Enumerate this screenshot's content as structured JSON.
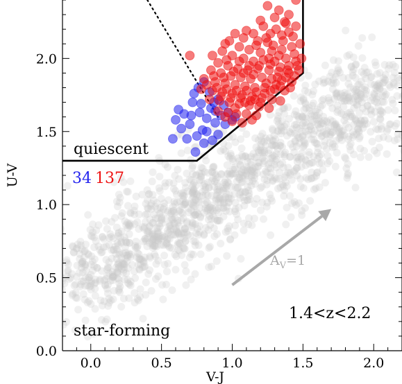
{
  "chart_data": {
    "type": "scatter",
    "xlabel": "V-J",
    "ylabel": "U-V",
    "xlim": [
      -0.2,
      2.2
    ],
    "ylim": [
      0.0,
      2.4
    ],
    "x_ticks": [
      0.0,
      0.5,
      1.0,
      1.5,
      2.0
    ],
    "x_tick_labels": [
      "0.0",
      "0.5",
      "1.0",
      "1.5",
      "2.0"
    ],
    "y_ticks": [
      0.0,
      0.5,
      1.0,
      1.5,
      2.0
    ],
    "y_tick_labels": [
      "0.0",
      "0.5",
      "1.0",
      "1.5",
      "2.0"
    ],
    "grid": false,
    "legend": "none",
    "annotations": {
      "region_quiescent": "quiescent",
      "region_star_forming": "star-forming",
      "redshift": "1.4<z<2.2",
      "count_blue": "34",
      "count_red": "137",
      "vector_label_main": "A",
      "vector_label_sub": "V",
      "vector_label_rest": "=1"
    },
    "colors": {
      "background_sample": "#c8c8c8",
      "blue_sample": "#2222ee",
      "red_sample": "#ee1111",
      "vector": "#a8a8a8",
      "boundary": "#000000"
    },
    "quiescent_boundary": [
      [
        -0.2,
        1.3
      ],
      [
        0.75,
        1.3
      ],
      [
        1.5,
        1.9
      ],
      [
        1.5,
        2.4
      ]
    ],
    "dotted_line": [
      [
        0.4,
        2.4
      ],
      [
        0.9,
        1.6
      ]
    ],
    "dust_vector": {
      "from": [
        1.0,
        0.45
      ],
      "to": [
        1.7,
        0.97
      ]
    },
    "series": [
      {
        "color": "#2222ee",
        "count": 34,
        "points": [
          [
            0.85,
            1.66
          ],
          [
            0.88,
            1.64
          ],
          [
            0.8,
            1.84
          ],
          [
            0.76,
            1.8
          ],
          [
            0.9,
            1.72
          ],
          [
            0.72,
            1.7
          ],
          [
            0.66,
            1.62
          ],
          [
            0.6,
            1.58
          ],
          [
            0.64,
            1.52
          ],
          [
            0.7,
            1.55
          ],
          [
            0.75,
            1.47
          ],
          [
            0.79,
            1.51
          ],
          [
            0.82,
            1.59
          ],
          [
            0.86,
            1.44
          ],
          [
            0.8,
            1.42
          ],
          [
            0.74,
            1.36
          ],
          [
            0.95,
            1.55
          ],
          [
            0.92,
            1.61
          ],
          [
            0.97,
            1.63
          ],
          [
            1.0,
            1.58
          ],
          [
            0.78,
            1.69
          ],
          [
            0.84,
            1.77
          ],
          [
            0.88,
            1.56
          ],
          [
            0.68,
            1.45
          ],
          [
            0.58,
            1.45
          ],
          [
            0.62,
            1.65
          ],
          [
            0.82,
            1.5
          ],
          [
            0.9,
            1.48
          ],
          [
            0.94,
            1.68
          ],
          [
            0.71,
            1.61
          ],
          [
            0.77,
            1.63
          ],
          [
            0.87,
            1.7
          ],
          [
            1.02,
            1.6
          ],
          [
            0.73,
            1.76
          ]
        ]
      },
      {
        "color": "#ee1111",
        "count": 137,
        "points": [
          [
            1.45,
            2.4
          ],
          [
            1.25,
            2.36
          ],
          [
            1.33,
            2.33
          ],
          [
            1.4,
            2.3
          ],
          [
            1.37,
            2.25
          ],
          [
            1.3,
            2.28
          ],
          [
            1.45,
            2.22
          ],
          [
            1.4,
            2.18
          ],
          [
            1.22,
            2.22
          ],
          [
            1.27,
            2.17
          ],
          [
            1.35,
            2.16
          ],
          [
            1.15,
            2.17
          ],
          [
            1.08,
            2.14
          ],
          [
            1.18,
            2.12
          ],
          [
            1.25,
            2.11
          ],
          [
            0.98,
            2.12
          ],
          [
            1.05,
            2.08
          ],
          [
            1.12,
            2.06
          ],
          [
            1.2,
            2.04
          ],
          [
            1.28,
            2.05
          ],
          [
            1.35,
            2.06
          ],
          [
            1.42,
            2.08
          ],
          [
            1.48,
            2.1
          ],
          [
            0.93,
            2.05
          ],
          [
            0.86,
            2.02
          ],
          [
            1.0,
            2.02
          ],
          [
            1.08,
            2.0
          ],
          [
            1.15,
            1.98
          ],
          [
            1.22,
            1.99
          ],
          [
            1.3,
            1.98
          ],
          [
            1.38,
            2.0
          ],
          [
            1.45,
            1.98
          ],
          [
            0.7,
            2.02
          ],
          [
            0.9,
            1.97
          ],
          [
            0.97,
            1.95
          ],
          [
            1.04,
            1.93
          ],
          [
            1.11,
            1.92
          ],
          [
            1.18,
            1.93
          ],
          [
            1.26,
            1.92
          ],
          [
            1.33,
            1.91
          ],
          [
            1.4,
            1.9
          ],
          [
            1.47,
            1.92
          ],
          [
            0.85,
            1.92
          ],
          [
            0.92,
            1.9
          ],
          [
            0.99,
            1.88
          ],
          [
            1.06,
            1.87
          ],
          [
            1.13,
            1.86
          ],
          [
            1.21,
            1.87
          ],
          [
            1.28,
            1.86
          ],
          [
            1.35,
            1.85
          ],
          [
            1.42,
            1.84
          ],
          [
            0.8,
            1.86
          ],
          [
            0.88,
            1.84
          ],
          [
            0.95,
            1.83
          ],
          [
            1.02,
            1.82
          ],
          [
            1.09,
            1.81
          ],
          [
            1.16,
            1.8
          ],
          [
            1.23,
            1.8
          ],
          [
            1.3,
            1.79
          ],
          [
            1.37,
            1.78
          ],
          [
            0.78,
            1.79
          ],
          [
            0.86,
            1.78
          ],
          [
            0.93,
            1.77
          ],
          [
            1.0,
            1.76
          ],
          [
            1.07,
            1.75
          ],
          [
            1.14,
            1.74
          ],
          [
            1.21,
            1.73
          ],
          [
            1.28,
            1.72
          ],
          [
            1.34,
            1.71
          ],
          [
            0.84,
            1.72
          ],
          [
            0.91,
            1.71
          ],
          [
            0.98,
            1.7
          ],
          [
            1.05,
            1.69
          ],
          [
            1.12,
            1.68
          ],
          [
            1.19,
            1.67
          ],
          [
            1.26,
            1.66
          ],
          [
            0.9,
            1.64
          ],
          [
            0.97,
            1.63
          ],
          [
            1.03,
            1.62
          ],
          [
            1.1,
            1.62
          ],
          [
            1.17,
            1.61
          ],
          [
            1.0,
            1.57
          ],
          [
            1.07,
            1.56
          ],
          [
            1.14,
            1.58
          ],
          [
            0.95,
            1.6
          ],
          [
            1.02,
            1.66
          ],
          [
            1.09,
            1.7
          ],
          [
            1.16,
            1.72
          ],
          [
            1.23,
            1.76
          ],
          [
            1.31,
            1.82
          ],
          [
            1.38,
            1.87
          ],
          [
            1.44,
            1.88
          ],
          [
            1.19,
            1.95
          ],
          [
            1.26,
            2.0
          ],
          [
            1.33,
            2.02
          ],
          [
            1.05,
            1.98
          ],
          [
            1.12,
            1.95
          ],
          [
            0.96,
            1.99
          ],
          [
            1.29,
            2.09
          ],
          [
            1.36,
            2.12
          ],
          [
            1.43,
            2.15
          ],
          [
            1.17,
            2.09
          ],
          [
            1.24,
            2.14
          ],
          [
            1.31,
            2.2
          ],
          [
            1.38,
            2.24
          ],
          [
            1.2,
            2.26
          ],
          [
            1.1,
            2.19
          ],
          [
            1.02,
            2.17
          ],
          [
            0.95,
            2.1
          ],
          [
            1.44,
            2.03
          ],
          [
            1.49,
            2.0
          ],
          [
            1.4,
            1.95
          ],
          [
            1.34,
            1.94
          ],
          [
            1.27,
            1.96
          ],
          [
            1.15,
            1.89
          ],
          [
            1.08,
            1.9
          ],
          [
            1.01,
            1.91
          ],
          [
            0.94,
            1.87
          ],
          [
            0.87,
            1.88
          ],
          [
            0.82,
            1.82
          ],
          [
            0.89,
            1.8
          ],
          [
            0.96,
            1.79
          ],
          [
            1.03,
            1.78
          ],
          [
            1.1,
            1.78
          ],
          [
            1.17,
            1.77
          ],
          [
            1.24,
            1.83
          ],
          [
            1.32,
            1.87
          ],
          [
            1.39,
            1.92
          ],
          [
            1.46,
            1.95
          ],
          [
            1.06,
            1.73
          ],
          [
            1.13,
            1.71
          ],
          [
            1.2,
            1.7
          ],
          [
            0.99,
            1.73
          ],
          [
            0.92,
            1.74
          ],
          [
            1.27,
            1.78
          ],
          [
            1.34,
            1.81
          ],
          [
            1.41,
            1.8
          ]
        ]
      }
    ]
  }
}
